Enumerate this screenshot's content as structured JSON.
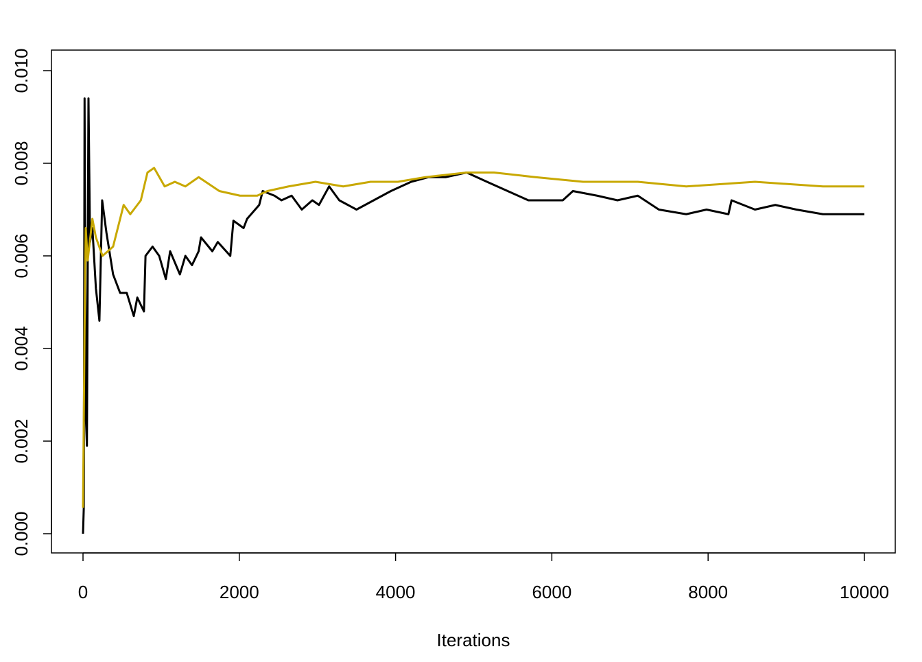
{
  "chart_data": {
    "type": "line",
    "xlabel": "Iterations",
    "xlim": [
      0,
      10000
    ],
    "xticks": [
      0,
      2000,
      4000,
      6000,
      8000,
      10000
    ],
    "ylim": [
      0,
      0.01
    ],
    "yticks": [
      {
        "value": 0,
        "label": "0.000"
      },
      {
        "value": 0.002,
        "label": "0.002"
      },
      {
        "value": 0.004,
        "label": "0.004"
      },
      {
        "value": 0.006,
        "label": "0.006"
      },
      {
        "value": 0.008,
        "label": "0.008"
      },
      {
        "value": 0.01,
        "label": "0.010"
      }
    ],
    "series": [
      {
        "color": "#000000",
        "x": [
          0,
          10,
          20,
          35,
          50,
          70,
          90,
          120,
          165,
          210,
          245,
          300,
          385,
          475,
          560,
          650,
          695,
          780,
          800,
          890,
          975,
          1060,
          1115,
          1240,
          1310,
          1395,
          1480,
          1510,
          1655,
          1725,
          1885,
          1925,
          2055,
          2100,
          2255,
          2300,
          2450,
          2540,
          2670,
          2800,
          2935,
          3020,
          3150,
          3280,
          3500,
          3720,
          3940,
          4200,
          4420,
          4640,
          4910,
          5170,
          5435,
          5700,
          5875,
          6140,
          6270,
          6580,
          6840,
          7100,
          7370,
          7720,
          7980,
          8260,
          8300,
          8600,
          8860,
          9130,
          9470,
          9740,
          10000
        ],
        "values": [
          0.0,
          0.00056,
          0.0094,
          0.0026,
          0.0019,
          0.0094,
          0.0063,
          0.0066,
          0.0053,
          0.0046,
          0.0072,
          0.0065,
          0.0056,
          0.0052,
          0.0052,
          0.0047,
          0.0051,
          0.0048,
          0.006,
          0.0062,
          0.006,
          0.0055,
          0.0061,
          0.0056,
          0.006,
          0.0058,
          0.0061,
          0.0064,
          0.0061,
          0.0063,
          0.006,
          0.00676,
          0.0066,
          0.0068,
          0.0071,
          0.0074,
          0.0073,
          0.0072,
          0.0073,
          0.007,
          0.0072,
          0.0071,
          0.0075,
          0.0072,
          0.007,
          0.0072,
          0.0074,
          0.0076,
          0.0077,
          0.0077,
          0.0078,
          0.0076,
          0.0074,
          0.0072,
          0.0072,
          0.0072,
          0.0074,
          0.0073,
          0.0072,
          0.0073,
          0.007,
          0.0069,
          0.007,
          0.0069,
          0.0072,
          0.007,
          0.0071,
          0.007,
          0.0069,
          0.0069,
          0.0069
        ]
      },
      {
        "color": "#c8a800",
        "x": [
          0,
          20,
          35,
          60,
          120,
          165,
          250,
          385,
          520,
          605,
          740,
          825,
          910,
          1045,
          1175,
          1310,
          1480,
          1745,
          2010,
          2230,
          2360,
          2630,
          2975,
          3330,
          3680,
          4030,
          4380,
          4910,
          5260,
          5790,
          6400,
          7100,
          7720,
          8600,
          9470,
          10000
        ],
        "values": [
          0.00056,
          0.0044,
          0.0066,
          0.0059,
          0.0068,
          0.0064,
          0.006,
          0.0062,
          0.0071,
          0.0069,
          0.0072,
          0.0078,
          0.0079,
          0.0075,
          0.0076,
          0.0075,
          0.0077,
          0.0074,
          0.0073,
          0.0073,
          0.0074,
          0.0075,
          0.0076,
          0.0075,
          0.0076,
          0.0076,
          0.0077,
          0.0078,
          0.0078,
          0.0077,
          0.0076,
          0.0076,
          0.0075,
          0.0076,
          0.0075,
          0.0075
        ]
      }
    ]
  }
}
